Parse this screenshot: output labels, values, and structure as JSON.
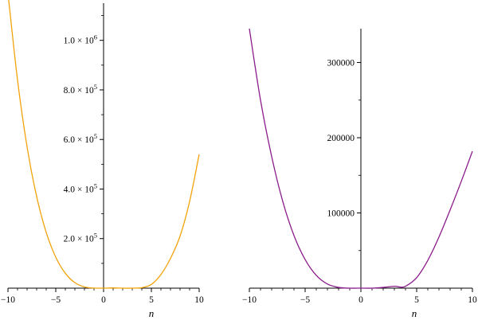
{
  "chart_data": [
    {
      "type": "line",
      "title": "",
      "xlabel": "n",
      "ylabel": "",
      "xlim": [
        -10,
        10
      ],
      "ylim": [
        0,
        1150000
      ],
      "grid": false,
      "line_color": "#f0a30a",
      "x_ticks": [
        -10,
        -5,
        0,
        5,
        10
      ],
      "x_tick_labels": [
        "−10",
        "−5",
        "0",
        "5",
        "10"
      ],
      "y_ticks": [
        {
          "value": 200000,
          "mantissa": "2.0",
          "exponent": "5"
        },
        {
          "value": 400000,
          "mantissa": "4.0",
          "exponent": "5"
        },
        {
          "value": 600000,
          "mantissa": "6.0",
          "exponent": "5"
        },
        {
          "value": 800000,
          "mantissa": "8.0",
          "exponent": "5"
        },
        {
          "value": 1000000,
          "mantissa": "1.0",
          "exponent": "6"
        }
      ],
      "series": [
        {
          "x": [
            -10,
            -9,
            -8,
            -7,
            -6,
            -5,
            -4,
            -3,
            -2,
            -1,
            0,
            1,
            2,
            3,
            4,
            5,
            6,
            7,
            8,
            9,
            10
          ],
          "y": [
            1190000,
            840000,
            570000,
            370000,
            225000,
            125000,
            60000,
            22000,
            5000,
            500,
            0,
            1000,
            0,
            0,
            2000,
            15000,
            55000,
            120000,
            210000,
            350000,
            540000
          ]
        }
      ]
    },
    {
      "type": "line",
      "title": "",
      "xlabel": "n",
      "ylabel": "",
      "xlim": [
        -10,
        10
      ],
      "ylim": [
        0,
        345000
      ],
      "grid": false,
      "line_color": "#8b1c8b",
      "x_ticks": [
        -10,
        -5,
        0,
        5,
        10
      ],
      "x_tick_labels": [
        "−10",
        "−5",
        "0",
        "5",
        "10"
      ],
      "y_ticks": [
        {
          "value": 100000,
          "label": "100000"
        },
        {
          "value": 200000,
          "label": "200000"
        },
        {
          "value": 300000,
          "label": "300000"
        }
      ],
      "series": [
        {
          "x": [
            -10,
            -9,
            -8,
            -7,
            -6,
            -5,
            -4,
            -3,
            -2,
            -1,
            0,
            1,
            2,
            3,
            3.5,
            4,
            5,
            6,
            7,
            8,
            9,
            10
          ],
          "y": [
            345000,
            250000,
            175000,
            115000,
            70000,
            38000,
            17000,
            5500,
            1000,
            0,
            0,
            0,
            1000,
            2500,
            1500,
            2500,
            14000,
            37000,
            68000,
            104000,
            142000,
            182000
          ]
        }
      ]
    }
  ]
}
